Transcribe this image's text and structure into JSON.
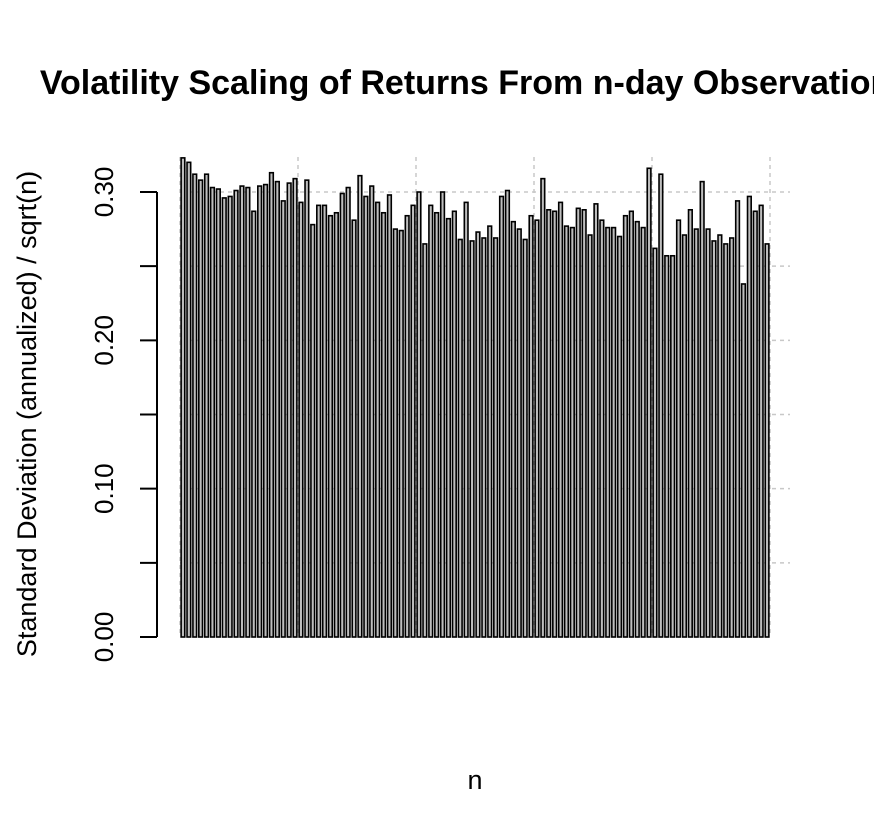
{
  "chart_data": {
    "type": "bar",
    "title": "Volatility Scaling of Returns From n-day Observations",
    "xlabel": "n",
    "ylabel": "Standard Deviation (annualized) / sqrt(n)",
    "ylim": [
      0,
      0.3
    ],
    "yticks": [
      "0.00",
      "0.10",
      "0.20",
      "0.30"
    ],
    "grid": true,
    "values": [
      0.323,
      0.32,
      0.312,
      0.308,
      0.312,
      0.303,
      0.302,
      0.296,
      0.297,
      0.301,
      0.304,
      0.303,
      0.287,
      0.304,
      0.305,
      0.313,
      0.307,
      0.294,
      0.306,
      0.309,
      0.293,
      0.308,
      0.278,
      0.291,
      0.291,
      0.284,
      0.286,
      0.299,
      0.303,
      0.281,
      0.311,
      0.297,
      0.304,
      0.293,
      0.286,
      0.298,
      0.275,
      0.274,
      0.284,
      0.291,
      0.3,
      0.265,
      0.291,
      0.286,
      0.3,
      0.282,
      0.287,
      0.268,
      0.293,
      0.267,
      0.273,
      0.269,
      0.277,
      0.269,
      0.297,
      0.301,
      0.28,
      0.275,
      0.268,
      0.284,
      0.281,
      0.309,
      0.288,
      0.287,
      0.293,
      0.277,
      0.276,
      0.289,
      0.288,
      0.271,
      0.292,
      0.281,
      0.276,
      0.276,
      0.27,
      0.284,
      0.287,
      0.28,
      0.276,
      0.316,
      0.262,
      0.312,
      0.257,
      0.257,
      0.281,
      0.271,
      0.288,
      0.275,
      0.307,
      0.275,
      0.267,
      0.271,
      0.265,
      0.269,
      0.294,
      0.238,
      0.297,
      0.287,
      0.291,
      0.265
    ]
  }
}
